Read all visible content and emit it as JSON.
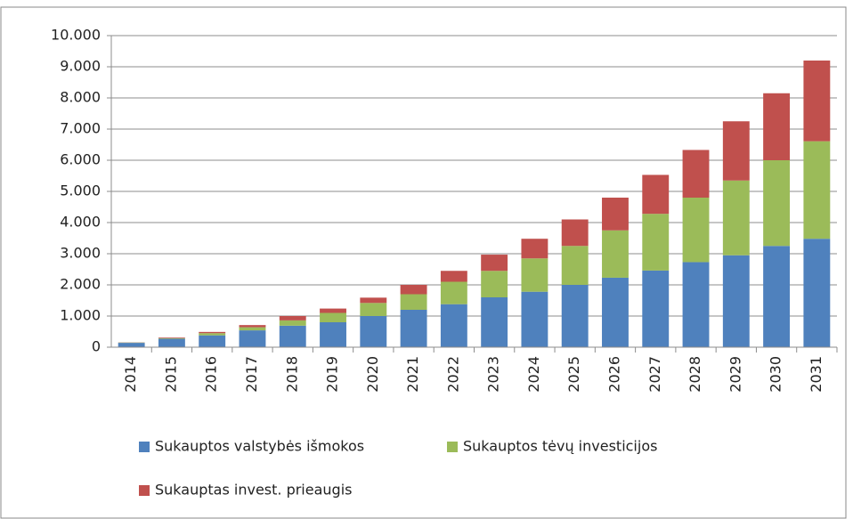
{
  "chart_data": {
    "type": "stacked_bar",
    "categories": [
      "2014",
      "2015",
      "2016",
      "2017",
      "2018",
      "2019",
      "2020",
      "2021",
      "2022",
      "2023",
      "2024",
      "2025",
      "2026",
      "2027",
      "2028",
      "2029",
      "2030",
      "2031"
    ],
    "series": [
      {
        "name": "Sukauptos valstybės išmokos",
        "color": "#4f81bd",
        "values": [
          140,
          270,
          380,
          540,
          690,
          800,
          1000,
          1200,
          1380,
          1600,
          1780,
          2000,
          2230,
          2460,
          2730,
          2950,
          3250,
          3480
        ]
      },
      {
        "name": "Sukauptos tėvų investicijos",
        "color": "#9bbb59",
        "values": [
          10,
          20,
          70,
          100,
          170,
          300,
          420,
          500,
          720,
          850,
          1070,
          1250,
          1520,
          1820,
          2070,
          2400,
          2750,
          3130
        ]
      },
      {
        "name": "Sukauptas invest. prieaugis",
        "color": "#c0504d",
        "values": [
          5,
          20,
          40,
          70,
          140,
          140,
          170,
          300,
          350,
          520,
          630,
          850,
          1050,
          1250,
          1530,
          1900,
          2150,
          2590
        ]
      }
    ],
    "ylim": [
      0,
      10000
    ],
    "yticks": [
      0,
      {
        "value": 1000,
        "label": "1.000"
      },
      {
        "value": 2000,
        "label": "2.000"
      },
      {
        "value": 3000,
        "label": "3.000"
      },
      {
        "value": 4000,
        "label": "4.000"
      },
      {
        "value": 5000,
        "label": "5.000"
      },
      {
        "value": 6000,
        "label": "6.000"
      },
      {
        "value": 7000,
        "label": "7.000"
      },
      {
        "value": 8000,
        "label": "8.000"
      },
      {
        "value": 9000,
        "label": "9.000"
      },
      {
        "value": 10000,
        "label": "10.000"
      }
    ],
    "grid": true
  }
}
